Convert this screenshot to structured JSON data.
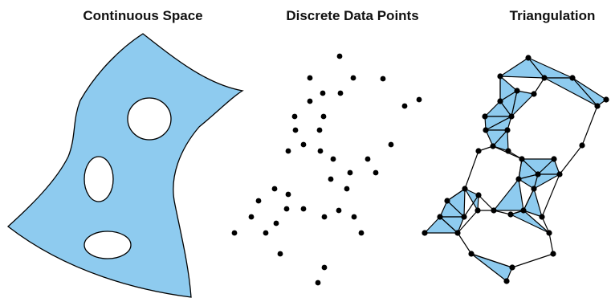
{
  "panels": [
    {
      "title": "Continuous Space"
    },
    {
      "title": "Discrete Data Points"
    },
    {
      "title": "Triangulation"
    }
  ],
  "colors": {
    "fill": "#8ecbef",
    "stroke": "#000000",
    "point": "#000000",
    "background": "#ffffff"
  }
}
